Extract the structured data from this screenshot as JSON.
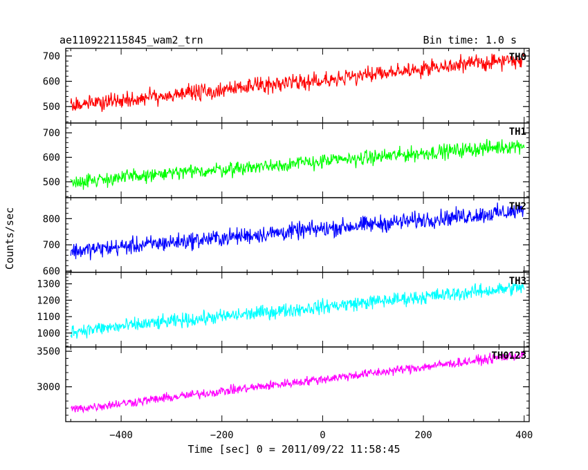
{
  "header": {
    "title": "ae110922115845_wam2_trn",
    "bin_time": "Bin time: 1.0 s"
  },
  "chart_data": {
    "type": "line",
    "ylabel": "Counts/sec",
    "xlabel": "Time [sec] 0 = 2011/09/22 11:58:45",
    "xlim": [
      -510,
      410
    ],
    "x_ticks": [
      -400,
      -200,
      0,
      200,
      400
    ],
    "x_tick_labels": [
      "−400",
      "−200",
      "0",
      "200",
      "400"
    ],
    "x_start": -500,
    "x_end": 400,
    "x_step": 1,
    "grid": false,
    "legend": "none",
    "panels": [
      {
        "name": "TH0",
        "color": "#ff0000",
        "ylim": [
          435,
          730
        ],
        "ticks": [
          500,
          600,
          700
        ],
        "trend_start": 505,
        "trend_end": 690,
        "noise": 30
      },
      {
        "name": "TH1",
        "color": "#00ff00",
        "ylim": [
          435,
          740
        ],
        "ticks": [
          500,
          600,
          700
        ],
        "trend_start": 500,
        "trend_end": 650,
        "noise": 28
      },
      {
        "name": "TH2",
        "color": "#0000ff",
        "ylim": [
          595,
          880
        ],
        "ticks": [
          600,
          700,
          800
        ],
        "trend_start": 675,
        "trend_end": 830,
        "noise": 30
      },
      {
        "name": "TH3",
        "color": "#00ffff",
        "ylim": [
          915,
          1370
        ],
        "ticks": [
          1000,
          1100,
          1200,
          1300
        ],
        "trend_start": 1010,
        "trend_end": 1280,
        "noise": 40
      },
      {
        "name": "TH0123",
        "color": "#ff00ff",
        "ylim": [
          2510,
          3560
        ],
        "ticks": [
          3000,
          3500
        ],
        "trend_start": 2680,
        "trend_end": 3450,
        "noise": 60
      }
    ]
  }
}
